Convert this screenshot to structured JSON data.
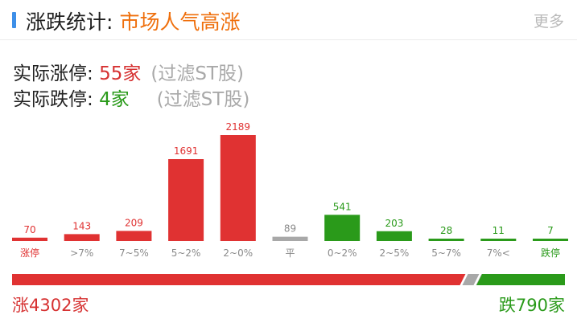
{
  "header": {
    "title": "涨跌统计:",
    "subtitle": "市场人气高涨",
    "more": "更多"
  },
  "stats": {
    "limit_up_label": "实际涨停:",
    "limit_up_value": "55家",
    "limit_up_note": "(过滤ST股)",
    "limit_down_label": "实际跌停:",
    "limit_down_value": "4家",
    "limit_down_note": "(过滤ST股)"
  },
  "colors": {
    "up": "#e03232",
    "flat": "#a8a8a8",
    "down": "#2a9a1a",
    "accent": "#3d8fe8",
    "subtitle": "#ef6f0c"
  },
  "chart_data": {
    "type": "bar",
    "categories": [
      "涨停",
      ">7%",
      "7~5%",
      "5~2%",
      "2~0%",
      "平",
      "0~2%",
      "2~5%",
      "5~7%",
      "7%<",
      "跌停"
    ],
    "values": [
      70,
      143,
      209,
      1691,
      2189,
      89,
      541,
      203,
      28,
      11,
      7
    ],
    "bar_colors": [
      "up",
      "up",
      "up",
      "up",
      "up",
      "flat",
      "down",
      "down",
      "down",
      "down",
      "down"
    ],
    "label_colors": [
      "up",
      "flat",
      "flat",
      "flat",
      "flat",
      "flat",
      "flat",
      "flat",
      "flat",
      "flat",
      "down"
    ],
    "ylim": [
      0,
      2189
    ]
  },
  "summary": {
    "up_total": 4302,
    "down_total": 790,
    "up_label": "涨4302家",
    "down_label": "跌790家"
  }
}
